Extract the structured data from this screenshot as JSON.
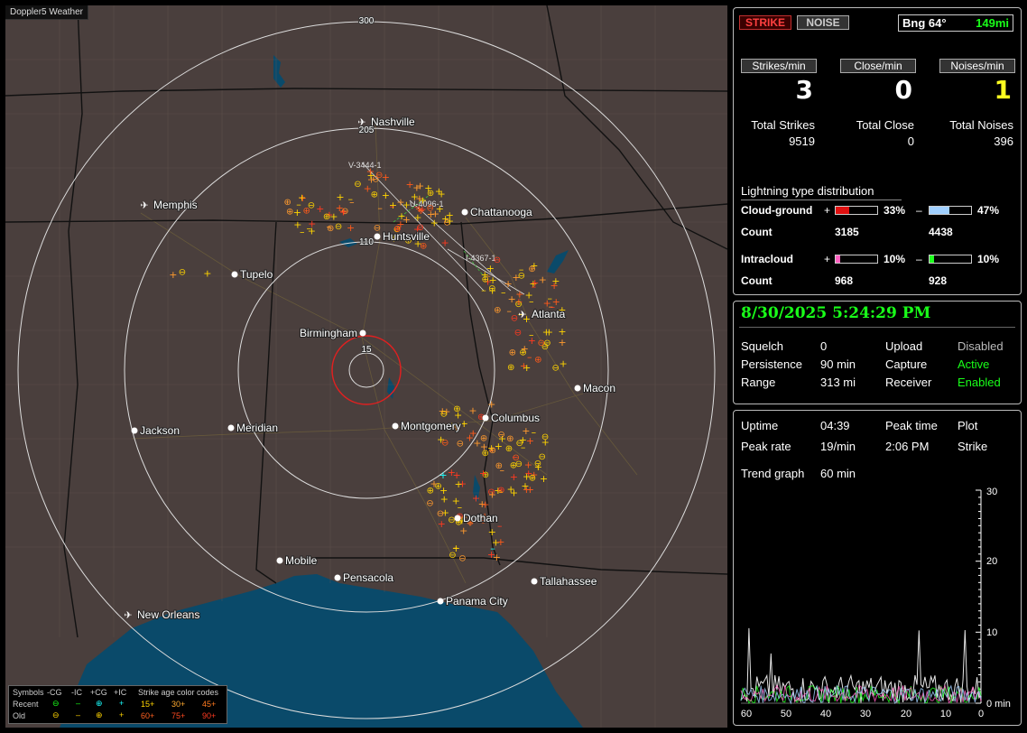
{
  "app": {
    "title": "Doppler5 Weather"
  },
  "colors": {
    "map_land": "#4a3f3d",
    "map_water": "#0a4a6a",
    "strike_recent": "#ffd400",
    "strike_mid": "#ff9a2e",
    "strike_old": "#ff5a1a",
    "close_ring": "#e02020"
  },
  "map": {
    "range_rings": [
      "300",
      "205",
      "110",
      "15"
    ],
    "cities": [
      {
        "name": "Nashville",
        "icon": "airport-icon"
      },
      {
        "name": "Memphis",
        "icon": "airport-icon"
      },
      {
        "name": "Chattanooga",
        "icon": "city-dot-icon"
      },
      {
        "name": "Huntsville",
        "icon": "city-dot-icon"
      },
      {
        "name": "Tupelo",
        "icon": "city-dot-icon"
      },
      {
        "name": "Atlanta",
        "icon": "airport-icon"
      },
      {
        "name": "Birmingham",
        "icon": "city-dot-icon"
      },
      {
        "name": "Macon",
        "icon": "city-dot-icon"
      },
      {
        "name": "Columbus",
        "icon": "city-dot-icon"
      },
      {
        "name": "Jackson",
        "icon": "city-dot-icon"
      },
      {
        "name": "Meridian",
        "icon": "city-dot-icon"
      },
      {
        "name": "Montgomery",
        "icon": "city-dot-icon"
      },
      {
        "name": "Dothan",
        "icon": "city-dot-icon"
      },
      {
        "name": "Mobile",
        "icon": "city-dot-icon"
      },
      {
        "name": "Pensacola",
        "icon": "city-dot-icon"
      },
      {
        "name": "Tallahassee",
        "icon": "city-dot-icon"
      },
      {
        "name": "Panama City",
        "icon": "city-dot-icon"
      },
      {
        "name": "New Orleans",
        "icon": "airport-icon"
      }
    ],
    "vectors": [
      "V-3444-1",
      "U-4096-1",
      "I-4367-1"
    ]
  },
  "legend": {
    "symbols_label": "Symbols",
    "headers": [
      "-CG",
      "-IC",
      "+CG",
      "+IC"
    ],
    "rows": [
      {
        "label": "Recent",
        "ages": [
          "15+",
          "30+",
          "45+"
        ]
      },
      {
        "label": "Old",
        "ages": [
          "60+",
          "75+",
          "90+"
        ]
      }
    ],
    "age_title": "Strike age color codes"
  },
  "panel1": {
    "strike_btn": "STRIKE",
    "noise_btn": "NOISE",
    "bearing": "Bng 64°",
    "distance": "149mi",
    "rates": [
      {
        "header": "Strikes/min",
        "value": "3"
      },
      {
        "header": "Close/min",
        "value": "0"
      },
      {
        "header": "Noises/min",
        "value": "1"
      }
    ],
    "totals": [
      {
        "label": "Total Strikes",
        "value": "9519"
      },
      {
        "label": "Total Close",
        "value": "0"
      },
      {
        "label": "Total Noises",
        "value": "396"
      }
    ],
    "dist_title": "Lightning type distribution",
    "cg_label": "Cloud-ground",
    "ic_label": "Intracloud",
    "count_label": "Count",
    "plus": "+",
    "minus": "–",
    "cg_pos_pct": "33%",
    "cg_pos_frac": 0.33,
    "cg_pos_count": "3185",
    "cg_neg_pct": "47%",
    "cg_neg_frac": 0.47,
    "cg_neg_count": "4438",
    "ic_pos_pct": "10%",
    "ic_pos_frac": 0.1,
    "ic_pos_count": "968",
    "ic_neg_pct": "10%",
    "ic_neg_frac": 0.1,
    "ic_neg_count": "928"
  },
  "panel2": {
    "datetime": "8/30/2025 5:24:29 PM",
    "rows": [
      {
        "k1": "Squelch",
        "v1": "0",
        "k2": "Upload",
        "v2": "Disabled"
      },
      {
        "k1": "Persistence",
        "v1": "90 min",
        "k2": "Capture",
        "v2": "Active"
      },
      {
        "k1": "Range",
        "v1": "313 mi",
        "k2": "Receiver",
        "v2": "Enabled"
      }
    ]
  },
  "panel3": {
    "uptime_label": "Uptime",
    "uptime": "04:39",
    "peak_time_label": "Peak time",
    "plot_label": "Plot",
    "peak_rate_label": "Peak rate",
    "peak_rate": "19/min",
    "peak_time": "2:06 PM",
    "plot": "Strike",
    "trend_label": "Trend graph",
    "trend_window": "60 min",
    "y_ticks": [
      "30",
      "20",
      "10",
      "0 min"
    ],
    "x_ticks": [
      "60",
      "50",
      "40",
      "30",
      "20",
      "10",
      "0"
    ]
  }
}
